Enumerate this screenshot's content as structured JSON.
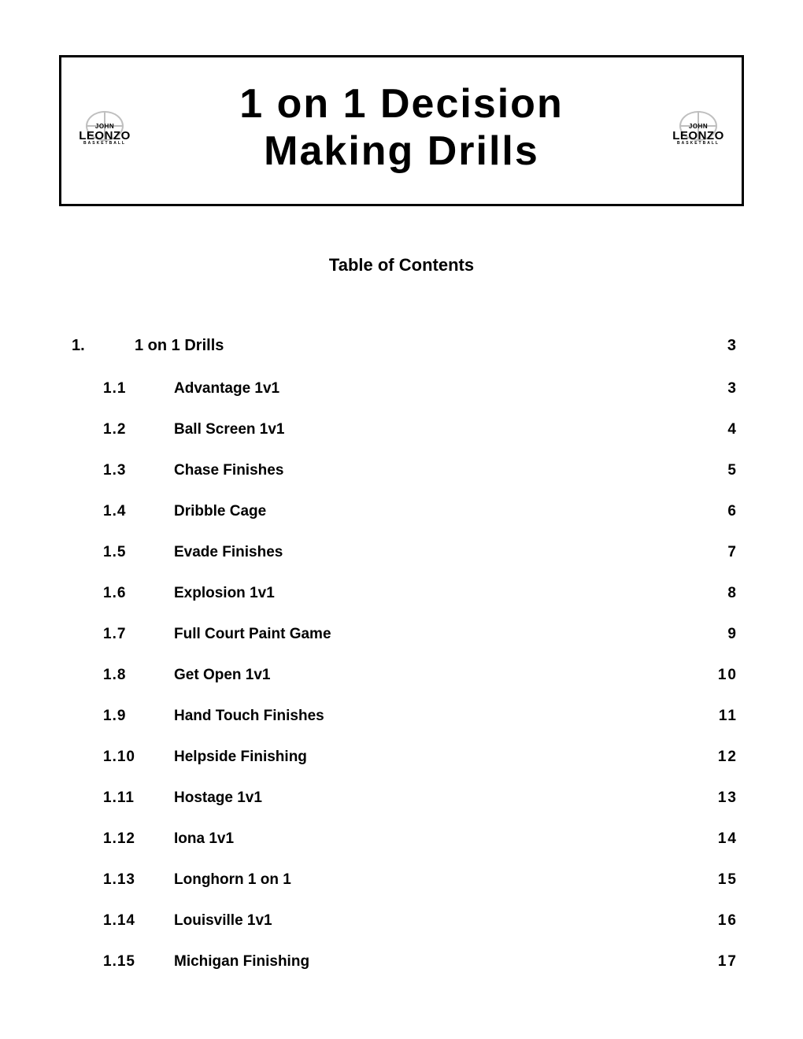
{
  "logo": {
    "line1": "JOHN",
    "line2": "LEONZO",
    "line3": "BASKETBALL"
  },
  "title": {
    "l1": "1 on 1 Decision",
    "l2": "Making Drills"
  },
  "toc_heading": "Table of Contents",
  "section": {
    "num": "1.",
    "label": "1 on 1 Drills",
    "page": "3"
  },
  "items": [
    {
      "num": "1.1",
      "label": "Advantage 1v1",
      "page": "3"
    },
    {
      "num": "1.2",
      "label": "Ball Screen 1v1",
      "page": "4"
    },
    {
      "num": "1.3",
      "label": "Chase Finishes",
      "page": "5"
    },
    {
      "num": "1.4",
      "label": "Dribble Cage",
      "page": "6"
    },
    {
      "num": "1.5",
      "label": "Evade Finishes",
      "page": "7"
    },
    {
      "num": "1.6",
      "label": "Explosion 1v1",
      "page": "8"
    },
    {
      "num": "1.7",
      "label": "Full Court Paint Game",
      "page": "9"
    },
    {
      "num": "1.8",
      "label": "Get Open 1v1",
      "page": "10"
    },
    {
      "num": "1.9",
      "label": "Hand Touch Finishes",
      "page": "11"
    },
    {
      "num": "1.10",
      "label": "Helpside Finishing",
      "page": "12"
    },
    {
      "num": "1.11",
      "label": "Hostage 1v1",
      "page": "13"
    },
    {
      "num": "1.12",
      "label": "Iona 1v1",
      "page": "14"
    },
    {
      "num": "1.13",
      "label": "Longhorn 1 on 1",
      "page": "15"
    },
    {
      "num": "1.14",
      "label": "Louisville 1v1",
      "page": "16"
    },
    {
      "num": "1.15",
      "label": "Michigan Finishing",
      "page": "17"
    }
  ]
}
